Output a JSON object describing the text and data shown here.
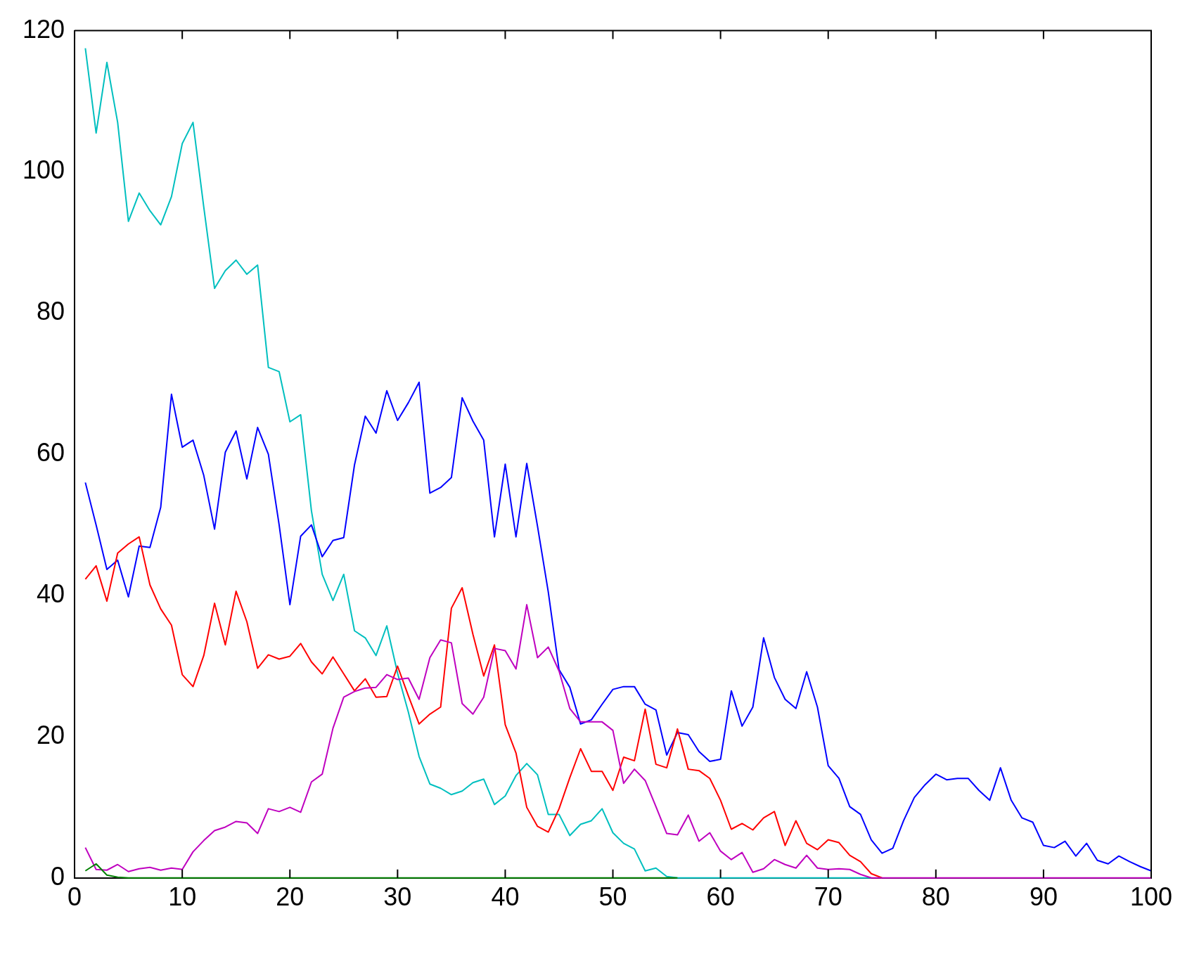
{
  "chart_data": {
    "type": "line",
    "x": [
      1,
      2,
      3,
      4,
      5,
      6,
      7,
      8,
      9,
      10,
      11,
      12,
      13,
      14,
      15,
      16,
      17,
      18,
      19,
      20,
      21,
      22,
      23,
      24,
      25,
      26,
      27,
      28,
      29,
      30,
      31,
      32,
      33,
      34,
      35,
      36,
      37,
      38,
      39,
      40,
      41,
      42,
      43,
      44,
      45,
      46,
      47,
      48,
      49,
      50,
      51,
      52,
      53,
      54,
      55,
      56,
      57,
      58,
      59,
      60,
      61,
      62,
      63,
      64,
      65,
      66,
      67,
      68,
      69,
      70,
      71,
      72,
      73,
      74,
      75,
      76,
      77,
      78,
      79,
      80,
      81,
      82,
      83,
      84,
      85,
      86,
      87,
      88,
      89,
      90,
      91,
      92,
      93,
      94,
      95,
      96,
      97,
      98,
      99,
      100
    ],
    "series": [
      {
        "color": "#00bfbf",
        "values": [
          117.5,
          105.5,
          115.5,
          107,
          93,
          97,
          94.5,
          92.5,
          96.5,
          104,
          107,
          95,
          83.5,
          86,
          87.5,
          85.5,
          86.8,
          72.3,
          71.7,
          64.6,
          65.6,
          52,
          43,
          39.3,
          43,
          35,
          34,
          31.5,
          35.7,
          29,
          23.5,
          17.2,
          13.3,
          12.7,
          11.8,
          12.3,
          13.5,
          14,
          10.4,
          11.6,
          14.5,
          16.2,
          14.6,
          9,
          9,
          6,
          7.6,
          8.1,
          9.8,
          6.4,
          4.9,
          4.1,
          1,
          1.4,
          0.2,
          0,
          0,
          0,
          0,
          0,
          0,
          0,
          0,
          0,
          0,
          0,
          0,
          0,
          0,
          0,
          0,
          0,
          0,
          0,
          null,
          null,
          null,
          null,
          null,
          null,
          null,
          null,
          null,
          null,
          null,
          null,
          null,
          null,
          null,
          null,
          null,
          null,
          null,
          null,
          null,
          null,
          null,
          null,
          null,
          null
        ]
      },
      {
        "color": "#0000ff",
        "values": [
          56,
          50,
          43.7,
          45,
          39.8,
          47,
          46.8,
          52.5,
          68.5,
          61,
          62,
          57,
          49.4,
          60.3,
          63.3,
          56.5,
          63.8,
          60,
          50,
          38.7,
          48.4,
          50,
          45.5,
          47.8,
          48.2,
          58.5,
          65.4,
          63,
          69,
          64.8,
          67.3,
          70.2,
          54.5,
          55.3,
          56.7,
          68,
          64.7,
          62,
          48.3,
          58.6,
          48.3,
          58.7,
          49.8,
          40.5,
          29.5,
          27,
          21.8,
          22.4,
          24.6,
          26.7,
          27.1,
          27.1,
          24.6,
          23.8,
          17.4,
          20.6,
          20.3,
          17.9,
          16.5,
          16.8,
          26.5,
          21.5,
          24.2,
          34,
          28.4,
          25.3,
          24,
          29.2,
          24.2,
          15.9,
          14.1,
          10.1,
          9,
          5.4,
          3.5,
          4.2,
          8.1,
          11.4,
          13.2,
          14.7,
          13.9,
          14.1,
          14.1,
          12.4,
          11,
          15.6,
          11,
          8.5,
          7.9,
          4.6,
          4.3,
          5.2,
          3.1,
          4.9,
          2.5,
          2,
          3.1,
          2.3,
          1.6,
          1
        ]
      },
      {
        "color": "#ff0000",
        "values": [
          42.3,
          44.2,
          39.2,
          46,
          47.3,
          48.3,
          41.5,
          38.1,
          35.8,
          28.8,
          27.1,
          31.5,
          38.9,
          33,
          40.6,
          36.3,
          29.7,
          31.6,
          31,
          31.4,
          33.2,
          30.6,
          28.9,
          31.3,
          28.9,
          26.5,
          28.2,
          25.6,
          25.7,
          30,
          25.8,
          21.8,
          23.2,
          24.2,
          38.2,
          41.1,
          34.5,
          28.6,
          33,
          21.7,
          17.7,
          10,
          7.3,
          6.5,
          9.8,
          14.2,
          18.3,
          15.1,
          15.1,
          12.4,
          17.1,
          16.6,
          23.9,
          16.1,
          15.6,
          21.1,
          15.4,
          15.2,
          14.1,
          11,
          6.9,
          7.7,
          6.8,
          8.5,
          9.4,
          4.6,
          8.1,
          4.9,
          4,
          5.4,
          5,
          3.2,
          2.3,
          0.6,
          0,
          null,
          null,
          null,
          null,
          null,
          null,
          null,
          null,
          null,
          null,
          null,
          null,
          null,
          null,
          null,
          null,
          null,
          null,
          null,
          null,
          null,
          null,
          null,
          null,
          null
        ]
      },
      {
        "color": "#bf00bf",
        "values": [
          4.3,
          1.2,
          1.1,
          1.9,
          0.9,
          1.3,
          1.5,
          1.1,
          1.4,
          1.2,
          3.7,
          5.3,
          6.7,
          7.2,
          8,
          7.8,
          6.3,
          9.8,
          9.4,
          10,
          9.3,
          13.6,
          14.7,
          21.2,
          25.6,
          26.4,
          26.9,
          27,
          28.8,
          28.1,
          28.3,
          25.3,
          31.2,
          33.7,
          33.3,
          24.7,
          23.2,
          25.6,
          32.5,
          32.2,
          29.6,
          38.7,
          31.2,
          32.7,
          29.3,
          24,
          22.1,
          22.1,
          22.1,
          20.9,
          13.4,
          15.4,
          13.8,
          10.1,
          6.3,
          6.1,
          8.9,
          5.2,
          6.4,
          3.8,
          2.6,
          3.6,
          0.8,
          1.3,
          2.6,
          1.9,
          1.4,
          3.2,
          1.4,
          1.2,
          1.3,
          1.2,
          0.5,
          0,
          0,
          0,
          0,
          0,
          0,
          0,
          0,
          0,
          0,
          0,
          0,
          0,
          0,
          0,
          0,
          0,
          0,
          0,
          0,
          0,
          0,
          0,
          0,
          0,
          0,
          0
        ]
      },
      {
        "color": "#008000",
        "values": [
          1,
          2,
          0.4,
          0.1,
          0,
          0,
          0,
          0,
          0,
          0,
          0,
          0,
          0,
          0,
          0,
          0,
          0,
          0,
          0,
          0,
          0,
          0,
          0,
          0,
          0,
          0,
          0,
          0,
          0,
          0,
          0,
          0,
          0,
          0,
          0,
          0,
          0,
          0,
          0,
          0,
          0,
          0,
          0,
          0,
          0,
          0,
          0,
          0,
          0,
          0,
          0,
          0,
          0,
          0,
          0,
          0,
          null,
          null,
          null,
          null,
          null,
          null,
          null,
          null,
          null,
          null,
          null,
          null,
          null,
          null,
          null,
          null,
          null,
          null,
          null,
          null,
          null,
          null,
          null,
          null,
          null,
          null,
          null,
          null,
          null,
          null,
          null,
          null,
          null,
          null,
          null,
          null,
          null,
          null,
          null,
          null,
          null,
          null,
          null,
          null
        ]
      }
    ],
    "xlim": [
      0,
      100
    ],
    "xticks": [
      0,
      10,
      20,
      30,
      40,
      50,
      60,
      70,
      80,
      90,
      100
    ],
    "ylim": [
      0,
      120
    ],
    "yticks": [
      0,
      20,
      40,
      60,
      80,
      100,
      120
    ],
    "grid": false,
    "legend": false,
    "marker": "none",
    "line_style": "solid"
  }
}
